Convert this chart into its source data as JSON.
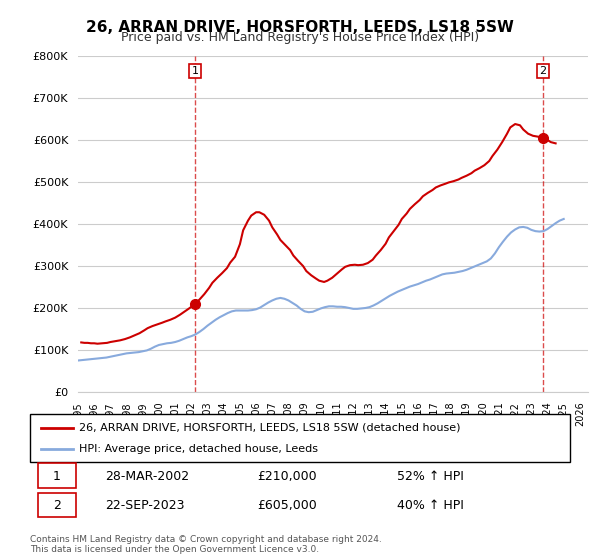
{
  "title": "26, ARRAN DRIVE, HORSFORTH, LEEDS, LS18 5SW",
  "subtitle": "Price paid vs. HM Land Registry's House Price Index (HPI)",
  "ylabel_ticks": [
    "£0",
    "£100K",
    "£200K",
    "£300K",
    "£400K",
    "£500K",
    "£600K",
    "£700K",
    "£800K"
  ],
  "ytick_values": [
    0,
    100000,
    200000,
    300000,
    400000,
    500000,
    600000,
    700000,
    800000
  ],
  "ylim": [
    0,
    800000
  ],
  "xlim_start": 1995.0,
  "xlim_end": 2026.5,
  "background_color": "#ffffff",
  "grid_color": "#cccccc",
  "vline1_x": 2002.24,
  "vline2_x": 2023.73,
  "marker1_x": 2002.24,
  "marker1_y": 210000,
  "marker2_x": 2023.73,
  "marker2_y": 605000,
  "marker_color": "#cc0000",
  "line1_color": "#cc0000",
  "line2_color": "#88aadd",
  "annotation1_label": "1",
  "annotation2_label": "2",
  "legend_line1": "26, ARRAN DRIVE, HORSFORTH, LEEDS, LS18 5SW (detached house)",
  "legend_line2": "HPI: Average price, detached house, Leeds",
  "table_row1": [
    "1",
    "28-MAR-2002",
    "£210,000",
    "52% ↑ HPI"
  ],
  "table_row2": [
    "2",
    "22-SEP-2023",
    "£605,000",
    "40% ↑ HPI"
  ],
  "footnote": "Contains HM Land Registry data © Crown copyright and database right 2024.\nThis data is licensed under the Open Government Licence v3.0.",
  "hpi_data_x": [
    1995.0,
    1995.25,
    1995.5,
    1995.75,
    1996.0,
    1996.25,
    1996.5,
    1996.75,
    1997.0,
    1997.25,
    1997.5,
    1997.75,
    1998.0,
    1998.25,
    1998.5,
    1998.75,
    1999.0,
    1999.25,
    1999.5,
    1999.75,
    2000.0,
    2000.25,
    2000.5,
    2000.75,
    2001.0,
    2001.25,
    2001.5,
    2001.75,
    2002.0,
    2002.25,
    2002.5,
    2002.75,
    2003.0,
    2003.25,
    2003.5,
    2003.75,
    2004.0,
    2004.25,
    2004.5,
    2004.75,
    2005.0,
    2005.25,
    2005.5,
    2005.75,
    2006.0,
    2006.25,
    2006.5,
    2006.75,
    2007.0,
    2007.25,
    2007.5,
    2007.75,
    2008.0,
    2008.25,
    2008.5,
    2008.75,
    2009.0,
    2009.25,
    2009.5,
    2009.75,
    2010.0,
    2010.25,
    2010.5,
    2010.75,
    2011.0,
    2011.25,
    2011.5,
    2011.75,
    2012.0,
    2012.25,
    2012.5,
    2012.75,
    2013.0,
    2013.25,
    2013.5,
    2013.75,
    2014.0,
    2014.25,
    2014.5,
    2014.75,
    2015.0,
    2015.25,
    2015.5,
    2015.75,
    2016.0,
    2016.25,
    2016.5,
    2016.75,
    2017.0,
    2017.25,
    2017.5,
    2017.75,
    2018.0,
    2018.25,
    2018.5,
    2018.75,
    2019.0,
    2019.25,
    2019.5,
    2019.75,
    2020.0,
    2020.25,
    2020.5,
    2020.75,
    2021.0,
    2021.25,
    2021.5,
    2021.75,
    2022.0,
    2022.25,
    2022.5,
    2022.75,
    2023.0,
    2023.25,
    2023.5,
    2023.75,
    2024.0,
    2024.25,
    2024.5,
    2024.75,
    2025.0
  ],
  "hpi_data_y": [
    75000,
    76000,
    77000,
    78000,
    79000,
    80000,
    81000,
    82000,
    84000,
    86000,
    88000,
    90000,
    92000,
    93000,
    94000,
    95000,
    97000,
    99000,
    103000,
    108000,
    112000,
    114000,
    116000,
    117000,
    119000,
    122000,
    126000,
    130000,
    133000,
    137000,
    143000,
    150000,
    158000,
    165000,
    172000,
    178000,
    183000,
    188000,
    192000,
    194000,
    194000,
    194000,
    194000,
    195000,
    197000,
    201000,
    207000,
    213000,
    218000,
    222000,
    224000,
    222000,
    218000,
    212000,
    206000,
    198000,
    192000,
    190000,
    191000,
    195000,
    199000,
    202000,
    204000,
    204000,
    203000,
    203000,
    202000,
    200000,
    198000,
    198000,
    199000,
    200000,
    202000,
    206000,
    211000,
    217000,
    223000,
    229000,
    234000,
    239000,
    243000,
    247000,
    251000,
    254000,
    257000,
    261000,
    265000,
    268000,
    272000,
    276000,
    280000,
    282000,
    283000,
    284000,
    286000,
    288000,
    291000,
    295000,
    299000,
    303000,
    307000,
    311000,
    318000,
    330000,
    345000,
    358000,
    370000,
    380000,
    387000,
    392000,
    393000,
    391000,
    386000,
    383000,
    382000,
    383000,
    388000,
    395000,
    402000,
    408000,
    412000
  ],
  "house_data_x": [
    1995.2,
    1995.4,
    1995.6,
    1995.8,
    1996.0,
    1996.2,
    1996.5,
    1996.8,
    1997.0,
    1997.3,
    1997.6,
    1997.9,
    1998.2,
    1998.5,
    1998.8,
    1999.1,
    1999.3,
    1999.6,
    1999.9,
    2000.2,
    2000.4,
    2000.7,
    2001.0,
    2001.3,
    2001.6,
    2001.9,
    2002.24,
    2002.5,
    2002.8,
    2003.1,
    2003.3,
    2003.6,
    2003.9,
    2004.2,
    2004.4,
    2004.7,
    2005.0,
    2005.2,
    2005.5,
    2005.7,
    2006.0,
    2006.2,
    2006.5,
    2006.8,
    2007.0,
    2007.3,
    2007.5,
    2007.8,
    2008.1,
    2008.3,
    2008.6,
    2008.9,
    2009.1,
    2009.4,
    2009.7,
    2009.9,
    2010.2,
    2010.4,
    2010.7,
    2011.0,
    2011.3,
    2011.5,
    2011.8,
    2012.1,
    2012.3,
    2012.6,
    2012.9,
    2013.2,
    2013.4,
    2013.7,
    2014.0,
    2014.2,
    2014.5,
    2014.8,
    2015.0,
    2015.3,
    2015.5,
    2015.8,
    2016.1,
    2016.3,
    2016.6,
    2016.9,
    2017.1,
    2017.4,
    2017.7,
    2017.9,
    2018.2,
    2018.5,
    2018.7,
    2019.0,
    2019.3,
    2019.5,
    2019.8,
    2020.1,
    2020.4,
    2020.6,
    2020.9,
    2021.2,
    2021.5,
    2021.7,
    2022.0,
    2022.3,
    2022.5,
    2022.8,
    2023.1,
    2023.4,
    2023.73,
    2024.0,
    2024.2,
    2024.5
  ],
  "house_data_y": [
    118000,
    117000,
    117000,
    116000,
    116000,
    115000,
    116000,
    117000,
    119000,
    121000,
    123000,
    126000,
    130000,
    135000,
    140000,
    147000,
    152000,
    157000,
    161000,
    165000,
    168000,
    172000,
    177000,
    184000,
    192000,
    200000,
    210000,
    220000,
    233000,
    248000,
    260000,
    272000,
    283000,
    295000,
    308000,
    322000,
    352000,
    385000,
    408000,
    420000,
    428000,
    428000,
    422000,
    408000,
    392000,
    375000,
    362000,
    350000,
    338000,
    325000,
    312000,
    300000,
    288000,
    278000,
    270000,
    265000,
    262000,
    265000,
    272000,
    282000,
    292000,
    298000,
    302000,
    303000,
    302000,
    303000,
    307000,
    315000,
    325000,
    338000,
    353000,
    368000,
    383000,
    398000,
    412000,
    425000,
    436000,
    447000,
    457000,
    466000,
    474000,
    481000,
    487000,
    492000,
    496000,
    499000,
    502000,
    506000,
    510000,
    515000,
    521000,
    527000,
    533000,
    540000,
    550000,
    562000,
    577000,
    595000,
    615000,
    630000,
    638000,
    635000,
    625000,
    615000,
    610000,
    608000,
    605000,
    600000,
    595000,
    592000
  ]
}
